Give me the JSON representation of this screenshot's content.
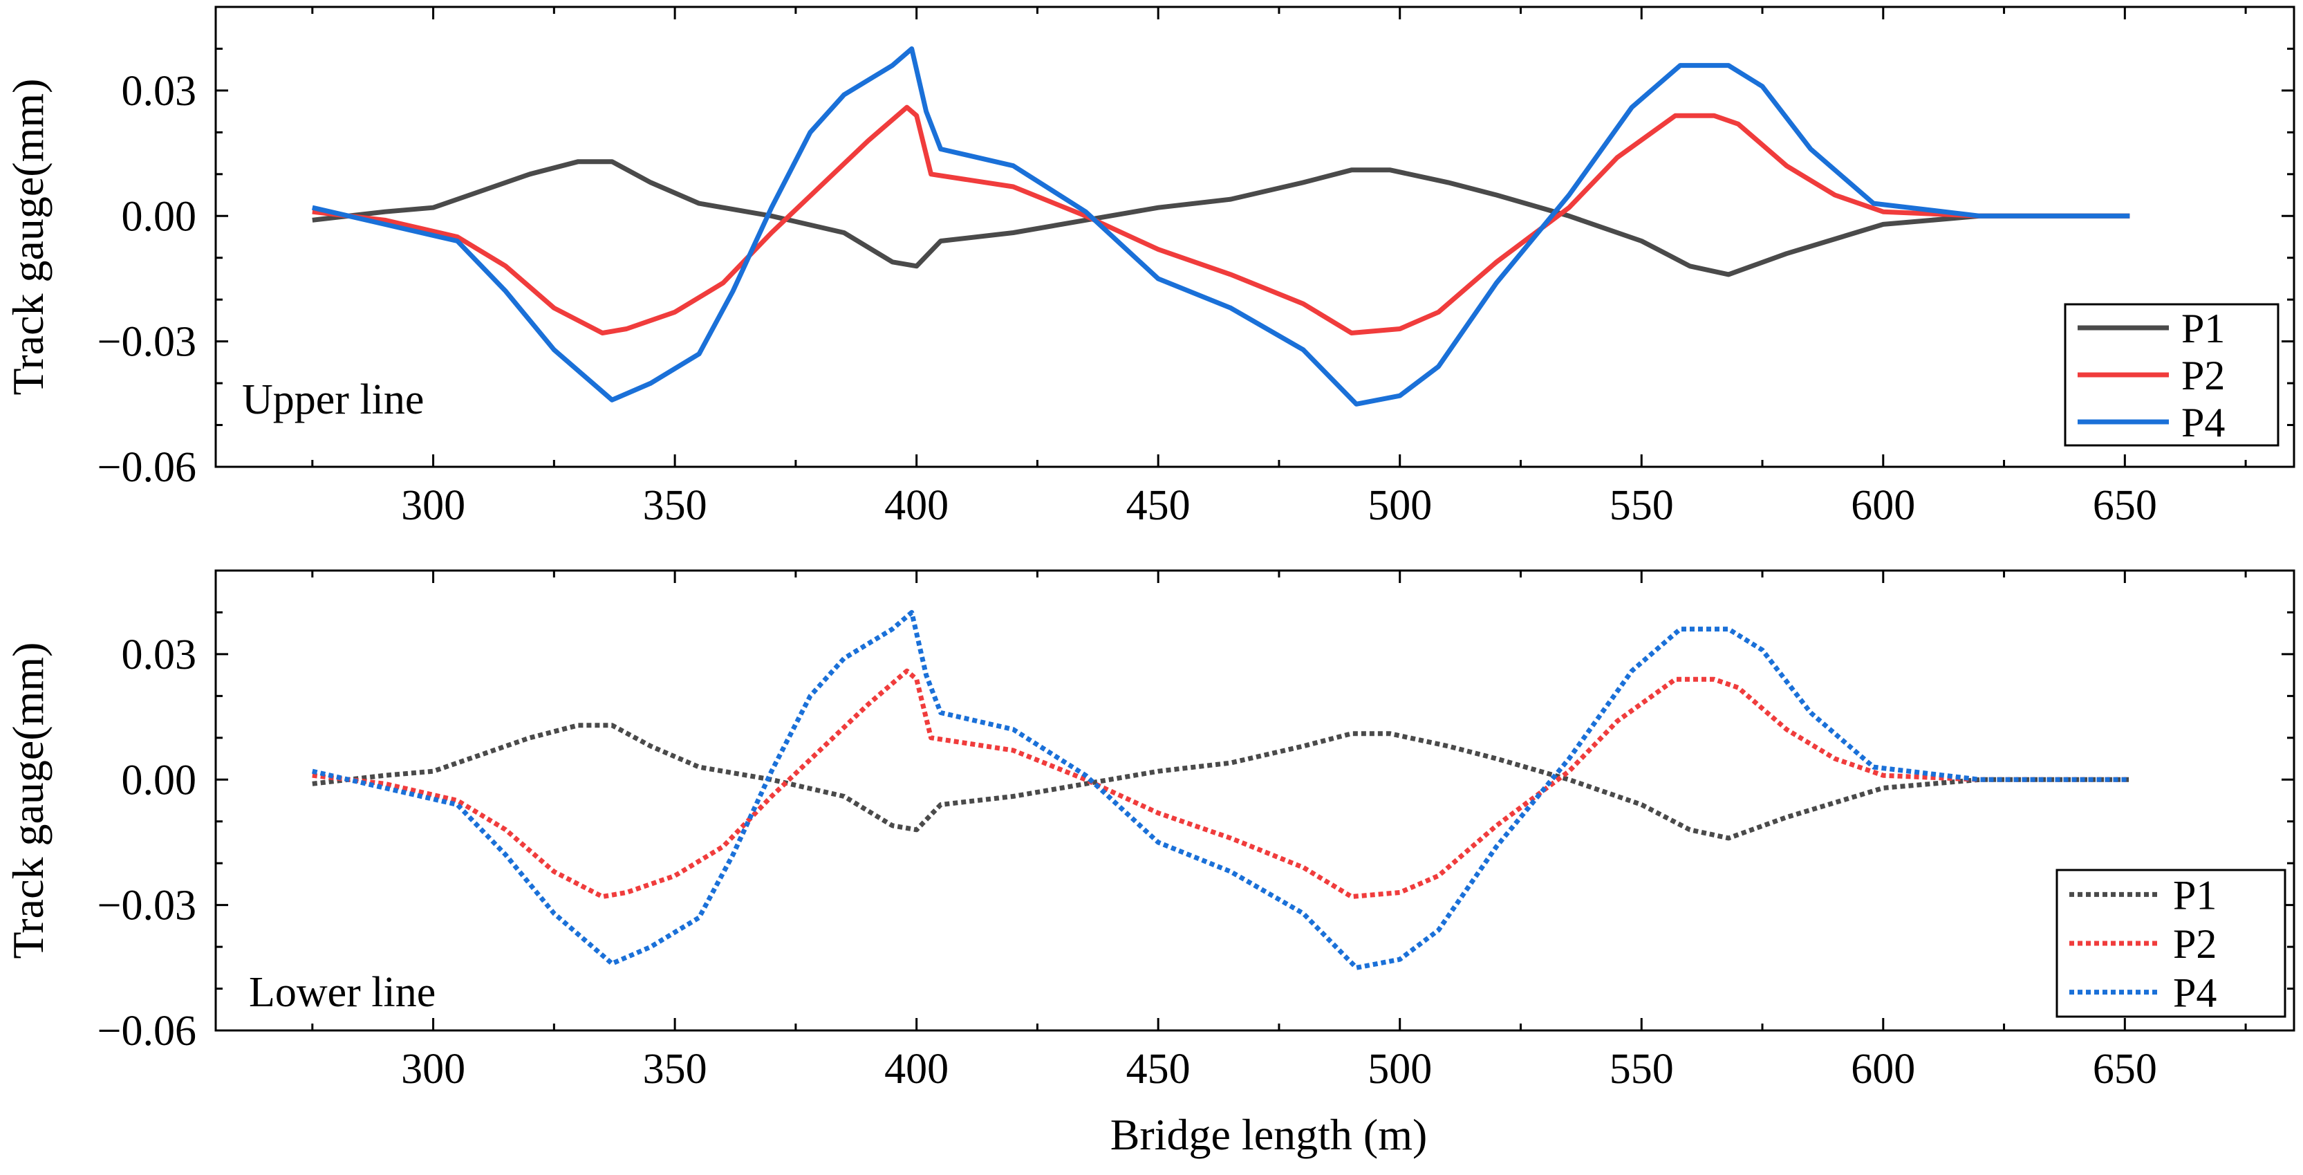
{
  "figure": {
    "xlabel": "Bridge length (m)"
  },
  "chart_data": [
    {
      "type": "line",
      "panel_label": "Upper line",
      "line_style": "solid",
      "ylabel": "Track gauge(mm)",
      "xlabel": "",
      "xlim": [
        255,
        685
      ],
      "ylim": [
        -0.06,
        0.05
      ],
      "xticks": [
        300,
        350,
        400,
        450,
        500,
        550,
        600,
        650
      ],
      "xtick_labels": [
        "300",
        "350",
        "400",
        "450",
        "500",
        "550",
        "600",
        "650"
      ],
      "yticks": [
        -0.06,
        -0.03,
        0.0,
        0.03
      ],
      "ytick_labels": [
        "−0.06",
        "−0.03",
        "0.00",
        "0.03"
      ],
      "legend_position": "bottom-right",
      "series": [
        {
          "name": "P1",
          "color": "#4a4a4a",
          "x": [
            275,
            290,
            300,
            310,
            320,
            330,
            337,
            345,
            355,
            370,
            385,
            395,
            400,
            405,
            420,
            435,
            450,
            465,
            480,
            490,
            498,
            510,
            520,
            535,
            550,
            560,
            568,
            580,
            600,
            620,
            640,
            651
          ],
          "y": [
            -0.001,
            0.001,
            0.002,
            0.006,
            0.01,
            0.013,
            0.013,
            0.008,
            0.003,
            0.0,
            -0.004,
            -0.011,
            -0.012,
            -0.006,
            -0.004,
            -0.001,
            0.002,
            0.004,
            0.008,
            0.011,
            0.011,
            0.008,
            0.005,
            0.0,
            -0.006,
            -0.012,
            -0.014,
            -0.009,
            -0.002,
            0.0,
            0.0,
            0.0
          ]
        },
        {
          "name": "P2",
          "color": "#f03c3c",
          "x": [
            275,
            290,
            305,
            315,
            325,
            335,
            340,
            350,
            360,
            370,
            380,
            390,
            398,
            400,
            403,
            420,
            435,
            450,
            465,
            480,
            490,
            500,
            508,
            520,
            535,
            545,
            557,
            565,
            570,
            580,
            590,
            600,
            620,
            651
          ],
          "y": [
            0.001,
            -0.001,
            -0.005,
            -0.012,
            -0.022,
            -0.028,
            -0.027,
            -0.023,
            -0.016,
            -0.004,
            0.007,
            0.018,
            0.026,
            0.024,
            0.01,
            0.007,
            0.0,
            -0.008,
            -0.014,
            -0.021,
            -0.028,
            -0.027,
            -0.023,
            -0.011,
            0.002,
            0.014,
            0.024,
            0.024,
            0.022,
            0.012,
            0.005,
            0.001,
            0.0,
            0.0
          ]
        },
        {
          "name": "P4",
          "color": "#1a70d8",
          "x": [
            275,
            290,
            305,
            315,
            325,
            337,
            345,
            355,
            362,
            370,
            378,
            385,
            395,
            399,
            402,
            405,
            420,
            435,
            450,
            465,
            480,
            491,
            500,
            508,
            520,
            535,
            548,
            558,
            568,
            575,
            585,
            598,
            620,
            651
          ],
          "y": [
            0.002,
            -0.002,
            -0.006,
            -0.018,
            -0.032,
            -0.044,
            -0.04,
            -0.033,
            -0.018,
            0.002,
            0.02,
            0.029,
            0.036,
            0.04,
            0.025,
            0.016,
            0.012,
            0.001,
            -0.015,
            -0.022,
            -0.032,
            -0.045,
            -0.043,
            -0.036,
            -0.016,
            0.005,
            0.026,
            0.036,
            0.036,
            0.031,
            0.016,
            0.003,
            0.0,
            0.0
          ]
        }
      ]
    },
    {
      "type": "line",
      "panel_label": "Lower line",
      "line_style": "dotted",
      "ylabel": "Track gauge(mm)",
      "xlabel": "Bridge length (m)",
      "xlim": [
        255,
        685
      ],
      "ylim": [
        -0.06,
        0.05
      ],
      "xticks": [
        300,
        350,
        400,
        450,
        500,
        550,
        600,
        650
      ],
      "xtick_labels": [
        "300",
        "350",
        "400",
        "450",
        "500",
        "550",
        "600",
        "650"
      ],
      "yticks": [
        -0.06,
        -0.03,
        0.0,
        0.03
      ],
      "ytick_labels": [
        "−0.06",
        "−0.03",
        "0.00",
        "0.03"
      ],
      "legend_position": "bottom-right",
      "series": [
        {
          "name": "P1",
          "color": "#4a4a4a",
          "x": [
            275,
            290,
            300,
            310,
            320,
            330,
            337,
            345,
            355,
            370,
            385,
            395,
            400,
            405,
            420,
            435,
            450,
            465,
            480,
            490,
            498,
            510,
            520,
            535,
            550,
            560,
            568,
            580,
            600,
            620,
            640,
            651
          ],
          "y": [
            -0.001,
            0.001,
            0.002,
            0.006,
            0.01,
            0.013,
            0.013,
            0.008,
            0.003,
            0.0,
            -0.004,
            -0.011,
            -0.012,
            -0.006,
            -0.004,
            -0.001,
            0.002,
            0.004,
            0.008,
            0.011,
            0.011,
            0.008,
            0.005,
            0.0,
            -0.006,
            -0.012,
            -0.014,
            -0.009,
            -0.002,
            0.0,
            0.0,
            0.0
          ]
        },
        {
          "name": "P2",
          "color": "#f03c3c",
          "x": [
            275,
            290,
            305,
            315,
            325,
            335,
            340,
            350,
            360,
            370,
            380,
            390,
            398,
            400,
            403,
            420,
            435,
            450,
            465,
            480,
            490,
            500,
            508,
            520,
            535,
            545,
            557,
            565,
            570,
            580,
            590,
            600,
            620,
            651
          ],
          "y": [
            0.001,
            -0.001,
            -0.005,
            -0.012,
            -0.022,
            -0.028,
            -0.027,
            -0.023,
            -0.016,
            -0.004,
            0.007,
            0.018,
            0.026,
            0.024,
            0.01,
            0.007,
            0.0,
            -0.008,
            -0.014,
            -0.021,
            -0.028,
            -0.027,
            -0.023,
            -0.011,
            0.002,
            0.014,
            0.024,
            0.024,
            0.022,
            0.012,
            0.005,
            0.001,
            0.0,
            0.0
          ]
        },
        {
          "name": "P4",
          "color": "#1a70d8",
          "x": [
            275,
            290,
            305,
            315,
            325,
            337,
            345,
            355,
            362,
            370,
            378,
            385,
            395,
            399,
            402,
            405,
            420,
            435,
            450,
            465,
            480,
            491,
            500,
            508,
            520,
            535,
            548,
            558,
            568,
            575,
            585,
            598,
            620,
            651
          ],
          "y": [
            0.002,
            -0.002,
            -0.006,
            -0.018,
            -0.032,
            -0.044,
            -0.04,
            -0.033,
            -0.018,
            0.002,
            0.02,
            0.029,
            0.036,
            0.04,
            0.025,
            0.016,
            0.012,
            0.001,
            -0.015,
            -0.022,
            -0.032,
            -0.045,
            -0.043,
            -0.036,
            -0.016,
            0.005,
            0.026,
            0.036,
            0.036,
            0.031,
            0.016,
            0.003,
            0.0,
            0.0
          ]
        }
      ]
    }
  ]
}
